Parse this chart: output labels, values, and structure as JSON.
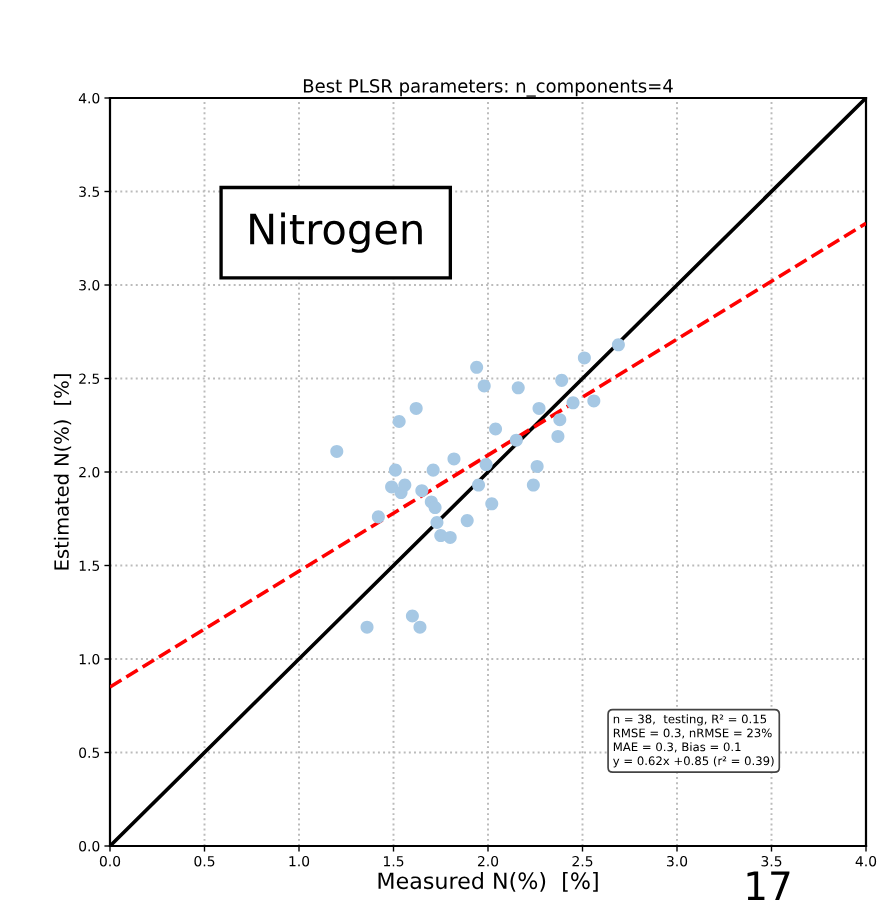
{
  "chart_data": {
    "type": "scatter",
    "title": "Best PLSR parameters: n_components=4",
    "xlabel": "Measured N(%)  [%]",
    "ylabel": "Estimated N(%)  [%]",
    "xlim": [
      0.0,
      4.0
    ],
    "ylim": [
      0.0,
      4.0
    ],
    "xticks": [
      {
        "value": 0,
        "label": "0.0"
      },
      {
        "value": 0.5,
        "label": "0.5"
      },
      {
        "value": 1,
        "label": "1.0"
      },
      {
        "value": 1.5,
        "label": "1.5"
      },
      {
        "value": 2,
        "label": "2.0"
      },
      {
        "value": 2.5,
        "label": "2.5"
      },
      {
        "value": 3,
        "label": "3.0"
      },
      {
        "value": 3.5,
        "label": "3.5"
      },
      {
        "value": 4,
        "label": "4.0"
      }
    ],
    "yticks": [
      {
        "value": 0,
        "label": "0.0"
      },
      {
        "value": 0.5,
        "label": "0.5"
      },
      {
        "value": 1,
        "label": "1.0"
      },
      {
        "value": 1.5,
        "label": "1.5"
      },
      {
        "value": 2,
        "label": "2.0"
      },
      {
        "value": 2.5,
        "label": "2.5"
      },
      {
        "value": 3,
        "label": "3.0"
      },
      {
        "value": 3.5,
        "label": "3.5"
      },
      {
        "value": 4,
        "label": "4.0"
      }
    ],
    "grid": true,
    "legend": false,
    "series": [
      {
        "type": "scatter",
        "color": "#a6c8e4",
        "marker": "circle",
        "x": [
          1.2,
          1.36,
          1.42,
          1.49,
          1.51,
          1.53,
          1.54,
          1.56,
          1.6,
          1.62,
          1.64,
          1.65,
          1.7,
          1.71,
          1.72,
          1.73,
          1.75,
          1.8,
          1.82,
          1.89,
          1.94,
          1.95,
          1.98,
          1.99,
          2.02,
          2.04,
          2.15,
          2.16,
          2.24,
          2.26,
          2.27,
          2.37,
          2.38,
          2.39,
          2.45,
          2.51,
          2.56,
          2.69
        ],
        "values": [
          2.11,
          1.17,
          1.76,
          1.92,
          2.01,
          2.27,
          1.89,
          1.93,
          1.23,
          2.34,
          1.17,
          1.9,
          1.84,
          2.01,
          1.81,
          1.73,
          1.66,
          1.65,
          2.07,
          1.74,
          2.56,
          1.93,
          2.46,
          2.04,
          1.83,
          2.23,
          2.17,
          2.45,
          1.93,
          2.03,
          2.34,
          2.19,
          2.28,
          2.49,
          2.37,
          2.61,
          2.38,
          2.68
        ]
      },
      {
        "type": "line",
        "color": "#000000",
        "line_style": "solid",
        "marker": "none",
        "x": [
          0,
          4
        ],
        "values": [
          0,
          4
        ]
      },
      {
        "type": "line",
        "color": "#ff0000",
        "line_style": "dashed",
        "marker": "none",
        "x": [
          0,
          4
        ],
        "values": [
          0.85,
          3.33
        ]
      }
    ],
    "annotations": [
      "Nitrogen",
      "n = 38,  testing, R² = 0.15\nRMSE = 0.3, nRMSE = 23%\nMAE = 0.3, Bias = 0.1\ny = 0.62x +0.85 (r² = 0.39)",
      "17"
    ]
  }
}
